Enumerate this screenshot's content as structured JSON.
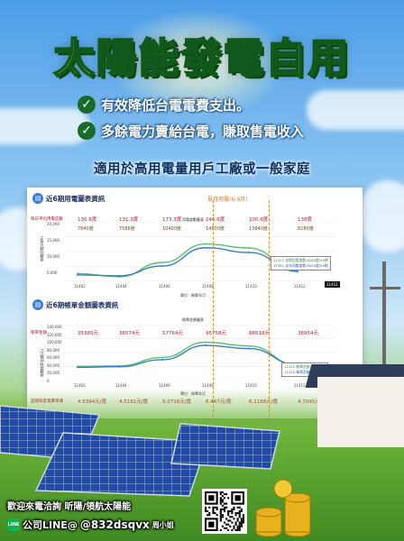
{
  "poster": {
    "title": "太陽能發電自用",
    "bullets": [
      "有效降低台電電費支出。",
      "多餘電力賣給台電，賺取售電收入"
    ],
    "subtitle": "適用於高用電量用戶工廠或一般家庭"
  },
  "panel": {
    "section1_title": "近6期用電圖表資訊",
    "summer_label": "夏月用電(6-9月)",
    "row_label_1": "每日平均用電度數",
    "kwh_values": [
      "130.6度",
      "131.3度",
      "173.3度",
      "246.6度",
      "230.6度",
      "138度"
    ],
    "total_values": [
      "7840度",
      "7088度",
      "10400度",
      "14800度",
      "13840度",
      "8280度"
    ],
    "chart1_title": "用電度數圖表",
    "chart1_ylabel": "每期用電(kWh)",
    "chart1_yticks": [
      "20,000",
      "15,000",
      "10,000",
      "6,000"
    ],
    "chart1_xticks": [
      "11402",
      "11404",
      "11406",
      "11408",
      "11410",
      "11412"
    ],
    "chart1_xlabel": "單位：帳單年月",
    "chart1_legend": [
      "11412 本期用電度數:8280度/59期",
      "11312 去年同期度數:8430度/59期"
    ],
    "chart1_badge": "11412",
    "section2_title": "近6期帳單金額圖表資訊",
    "row_label_2": "帳單金額",
    "amount_values": [
      "35385元",
      "36574元",
      "57764元",
      "95758元",
      "86518元",
      "38954元"
    ],
    "chart2_title": "帳單金額圖表",
    "chart2_ylabel": "每期帳單金額(元)",
    "chart2_yticks": [
      "140,000",
      "120,000",
      "100,000",
      "80,000",
      "60,000",
      "40,000",
      "20,000",
      "0"
    ],
    "chart2_xticks": [
      "11402",
      "11404",
      "11406",
      "11408",
      "11410",
      "11412"
    ],
    "chart2_xlabel": "單位：帳單年月",
    "chart2_legend": [
      "11412 帳單金額:38954元",
      "11312 帳單金額:39568元"
    ],
    "chart2_badge": "11412",
    "row_label_3": "當期每度電費單價",
    "unit_prices": [
      "4.6394元/度",
      "4.5161元/度",
      "5.0716元/度",
      "6.467元/度",
      "6.1168元/度",
      "4.7045元/度"
    ]
  },
  "chart_data": [
    {
      "type": "line",
      "title": "用電度數圖表",
      "xlabel": "單位：帳單年月",
      "ylabel": "每期用電(kWh)",
      "x": [
        "11402",
        "11404",
        "11406",
        "11408",
        "11410",
        "11412"
      ],
      "ylim": [
        6000,
        20000
      ],
      "series": [
        {
          "name": "11412 本期用電度數:8280度/59期",
          "values": [
            7840,
            7088,
            10400,
            14800,
            13840,
            8280
          ]
        },
        {
          "name": "11312 去年同期度數:8430度/59期",
          "values": [
            7500,
            7300,
            9600,
            13900,
            12800,
            8430
          ]
        }
      ]
    },
    {
      "type": "line",
      "title": "帳單金額圖表",
      "xlabel": "單位：帳單年月",
      "ylabel": "每期帳單金額(元)",
      "x": [
        "11402",
        "11404",
        "11406",
        "11408",
        "11410",
        "11412"
      ],
      "ylim": [
        0,
        140000
      ],
      "series": [
        {
          "name": "11412 帳單金額:38954元",
          "values": [
            35385,
            36574,
            57764,
            95758,
            86518,
            38954
          ]
        },
        {
          "name": "11312 帳單金額:39568元",
          "values": [
            33000,
            34500,
            52000,
            88000,
            80000,
            39568
          ]
        }
      ]
    }
  ],
  "footer": {
    "line1": "歡迎來電洽詢 昕陽/領航太陽能",
    "line_badge": "LINE",
    "line2_prefix": "公司LINE@",
    "line2_id": "@832dsqvx",
    "contact_name": "周小姐"
  },
  "colors": {
    "title_yellow": "#ffe300",
    "title_outline": "#11591a",
    "series_green": "#56c46a",
    "series_blue": "#3a7bd5",
    "summer_dash": "#e08a2a"
  }
}
